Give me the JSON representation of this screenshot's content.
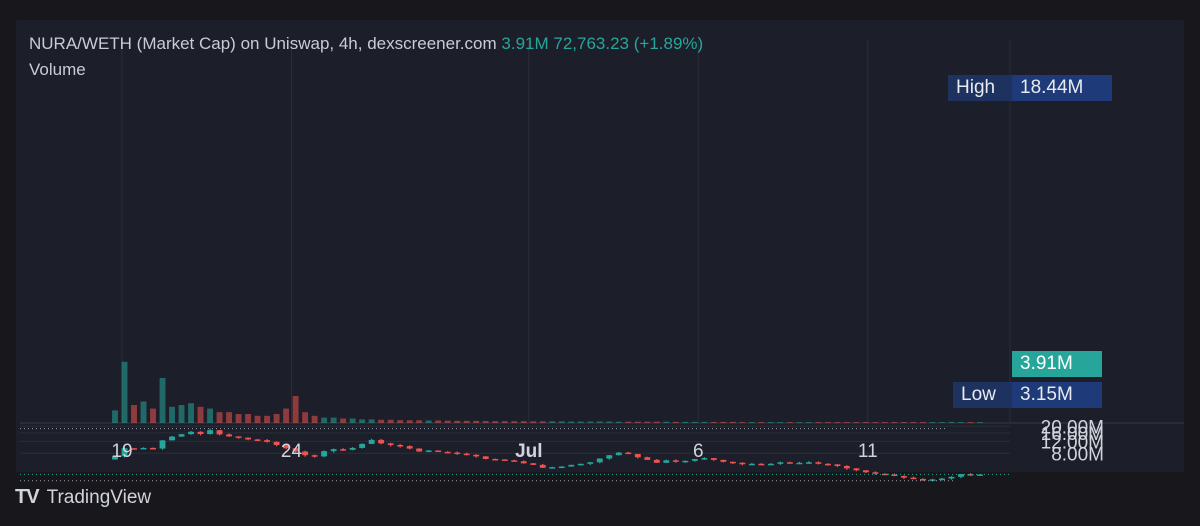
{
  "header": {
    "title": "NURA/WETH (Market Cap) on Uniswap, 4h, dexscreener.com",
    "last_value": "3.91M",
    "change": "72,763.23 (+1.89%)",
    "volume_label": "Volume"
  },
  "brand": {
    "name": "TradingView",
    "icon": "tradingview-logo-icon"
  },
  "colors": {
    "up": "#26a69a",
    "down": "#ef5350",
    "background": "#1c1e29",
    "grid": "#2a2e39"
  },
  "tags": {
    "high_label": "High",
    "high_value": "18.44M",
    "low_label": "Low",
    "low_value": "3.15M",
    "current_value": "3.91M"
  },
  "chart_data": {
    "type": "candlestick",
    "y_unit": "market cap (M)",
    "ylim": [
      0,
      22
    ],
    "y_ticks": [
      {
        "value": 20,
        "label": "20.00M"
      },
      {
        "value": 16,
        "label": "16.00M"
      },
      {
        "value": 12,
        "label": "12.00M"
      },
      {
        "value": 8,
        "label": "8.00M"
      }
    ],
    "x_ticks": [
      {
        "day": 0,
        "label": "19",
        "bold": false
      },
      {
        "day": 5,
        "label": "24",
        "bold": false
      },
      {
        "day": 12,
        "label": "Jul",
        "bold": true
      },
      {
        "day": 17,
        "label": "6",
        "bold": false
      },
      {
        "day": 22,
        "label": "11",
        "bold": false
      }
    ],
    "high": 18.44,
    "low": 3.15,
    "current": 3.91,
    "closes": [
      7.2,
      9.5,
      9.4,
      9.6,
      9.4,
      12.4,
      14.1,
      15.3,
      16.6,
      15.4,
      17.5,
      15.2,
      14.2,
      13.6,
      12.8,
      12.5,
      11.8,
      10.6,
      9.5,
      8.5,
      7.5,
      7.2,
      8.6,
      9.2,
      9.0,
      9.6,
      11.0,
      12.6,
      11.2,
      10.6,
      10.2,
      9.4,
      8.5,
      8.8,
      8.4,
      8.2,
      7.9,
      7.6,
      7.2,
      6.6,
      6.5,
      6.3,
      6.1,
      5.7,
      5.4,
      4.9,
      5.0,
      5.1,
      5.4,
      5.6,
      5.9,
      6.7,
      7.5,
      8.2,
      7.8,
      7.0,
      6.4,
      5.8,
      6.3,
      6.0,
      6.2,
      6.6,
      6.8,
      6.4,
      6.0,
      5.8,
      5.6,
      5.6,
      5.5,
      5.6,
      5.9,
      5.7,
      5.8,
      5.9,
      5.6,
      5.5,
      5.2,
      4.8,
      4.5,
      4.2,
      4.0,
      3.9,
      3.7,
      3.5,
      3.35,
      3.2,
      3.3,
      3.4,
      3.6,
      3.95,
      3.9,
      3.91
    ],
    "volumes": [
      0.7,
      3.4,
      1.0,
      1.2,
      0.8,
      2.5,
      0.9,
      1.0,
      1.1,
      0.9,
      0.8,
      0.6,
      0.6,
      0.5,
      0.5,
      0.4,
      0.4,
      0.5,
      0.8,
      1.5,
      0.6,
      0.4,
      0.3,
      0.3,
      0.25,
      0.25,
      0.2,
      0.2,
      0.18,
      0.18,
      0.16,
      0.15,
      0.15,
      0.14,
      0.14,
      0.13,
      0.12,
      0.12,
      0.12,
      0.11,
      0.1,
      0.1,
      0.1,
      0.1,
      0.09,
      0.09,
      0.09,
      0.09,
      0.08,
      0.08,
      0.08,
      0.08,
      0.08,
      0.07,
      0.07,
      0.07,
      0.07,
      0.07,
      0.07,
      0.06,
      0.06,
      0.06,
      0.06,
      0.06,
      0.06,
      0.06,
      0.05,
      0.05,
      0.05,
      0.05,
      0.05,
      0.05,
      0.05,
      0.05,
      0.05,
      0.05,
      0.05,
      0.05,
      0.05,
      0.05,
      0.05,
      0.05,
      0.05,
      0.05,
      0.05,
      0.05,
      0.05,
      0.05,
      0.06,
      0.05,
      0.05,
      0.05
    ]
  }
}
